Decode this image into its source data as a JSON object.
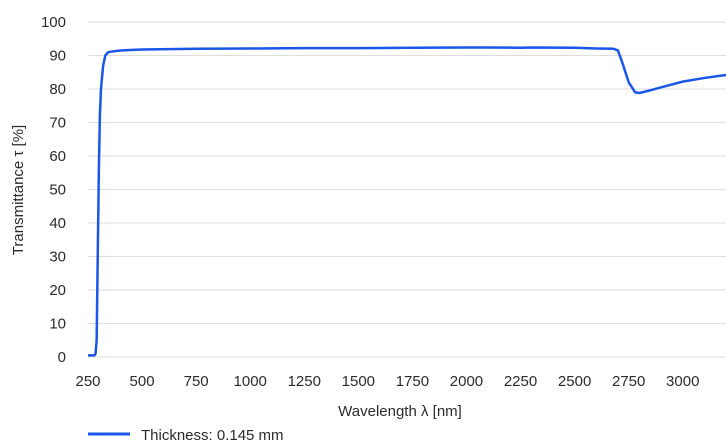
{
  "chart_data": {
    "type": "line",
    "xlabel": "Wavelength λ [nm]",
    "ylabel": "Transmittance τ [%]",
    "xlim": [
      250,
      3200
    ],
    "ylim": [
      0,
      100
    ],
    "xticks": [
      250,
      500,
      750,
      1000,
      1250,
      1500,
      1750,
      2000,
      2250,
      2500,
      2750,
      3000
    ],
    "yticks": [
      0,
      10,
      20,
      30,
      40,
      50,
      60,
      70,
      80,
      90,
      100
    ],
    "grid": "horizontal",
    "legend_position": "bottom-left",
    "series": [
      {
        "name": "Thickness: 0.145 mm",
        "color": "#1a56e8",
        "x": [
          250,
          280,
          285,
          290,
          295,
          300,
          305,
          310,
          320,
          330,
          340,
          350,
          400,
          500,
          750,
          1000,
          1250,
          1500,
          1750,
          2000,
          2100,
          2250,
          2300,
          2500,
          2600,
          2680,
          2700,
          2720,
          2750,
          2780,
          2800,
          2850,
          2900,
          3000,
          3100,
          3200
        ],
        "y": [
          0.5,
          0.5,
          1,
          5,
          30,
          55,
          72,
          80,
          87,
          90,
          90.8,
          91.1,
          91.5,
          91.8,
          92,
          92.1,
          92.2,
          92.2,
          92.3,
          92.4,
          92.4,
          92.3,
          92.4,
          92.3,
          92.1,
          92,
          91.5,
          88,
          82,
          79,
          78.8,
          79.6,
          80.5,
          82.2,
          83.3,
          84.2
        ]
      }
    ]
  }
}
